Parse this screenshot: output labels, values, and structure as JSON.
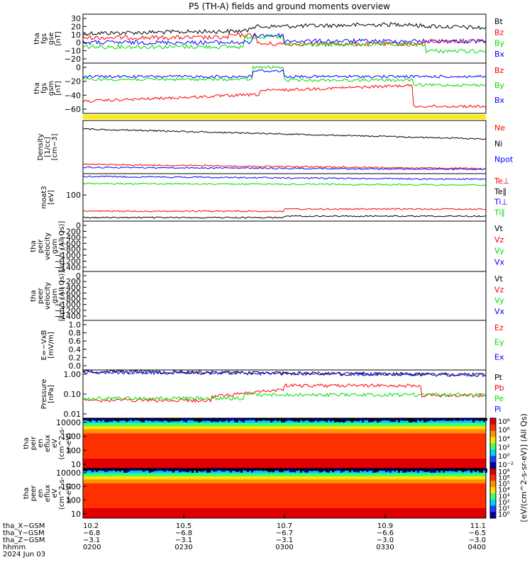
{
  "title": "P5 (TH-A) fields and ground moments overview",
  "chart_data": [
    {
      "type": "line",
      "ylabel": [
        "tha",
        "fgs",
        "gse",
        "[nT]"
      ],
      "yticks": [
        "30",
        "20",
        "10",
        "0",
        "−10",
        "−20"
      ],
      "ylim": [
        -28,
        36
      ],
      "series": [
        {
          "name": "Bt",
          "color": "#000000"
        },
        {
          "name": "Bz",
          "color": "#ff0000"
        },
        {
          "name": "By",
          "color": "#00dd00"
        },
        {
          "name": "Bx",
          "color": "#0000ff"
        }
      ]
    },
    {
      "type": "line",
      "ylabel": [
        "tha",
        "fgs",
        "gsm",
        "[nT]"
      ],
      "yticks": [
        "0",
        "−20",
        "−40",
        "−60"
      ],
      "ylim": [
        -70,
        5
      ],
      "series": [
        {
          "name": "Bz",
          "color": "#ff0000"
        },
        {
          "name": "By",
          "color": "#00dd00"
        },
        {
          "name": "Bx",
          "color": "#0000ff"
        }
      ]
    },
    {
      "type": "line",
      "ylabel": [
        "Density",
        "[1/cc]",
        "[cm−3]"
      ],
      "yticks": [],
      "series": [
        {
          "name": "Ne",
          "color": "#ff0000"
        },
        {
          "name": "Ni",
          "color": "#000000"
        },
        {
          "name": "Npot",
          "color": "#0000ff"
        }
      ]
    },
    {
      "type": "line",
      "ylabel": [
        "moat3",
        "[eV]"
      ],
      "yticks": [
        "100"
      ],
      "series": [
        {
          "name": "Te⊥",
          "color": "#ff0000"
        },
        {
          "name": "Te∥",
          "color": "#000000"
        },
        {
          "name": "Ti⊥",
          "color": "#0000ff"
        },
        {
          "name": "Ti∥",
          "color": "#00dd00"
        }
      ]
    },
    {
      "type": "line",
      "ylabel": [
        "tha",
        "peir",
        "velocity",
        "gsm",
        "[km/s (All Qs)]"
      ],
      "yticks": [
        "0",
        "−200",
        "−400",
        "−600",
        "−800",
        "−1000",
        "−1200",
        "−1400"
      ],
      "ylim": [
        -1450,
        20
      ],
      "series": [
        {
          "name": "Vt",
          "color": "#000000"
        },
        {
          "name": "Vz",
          "color": "#ff0000"
        },
        {
          "name": "Vy",
          "color": "#00dd00"
        },
        {
          "name": "Vx",
          "color": "#0000ff"
        }
      ]
    },
    {
      "type": "line",
      "ylabel": [
        "tha",
        "peer",
        "velocity",
        "gsm",
        "[km/s (All Qs)]"
      ],
      "yticks": [
        "0",
        "−200",
        "−400",
        "−600",
        "−800",
        "−1000",
        "−1200",
        "−1400"
      ],
      "ylim": [
        -1450,
        20
      ],
      "series": [
        {
          "name": "Vt",
          "color": "#000000"
        },
        {
          "name": "Vz",
          "color": "#ff0000"
        },
        {
          "name": "Vy",
          "color": "#00dd00"
        },
        {
          "name": "Vx",
          "color": "#0000ff"
        }
      ]
    },
    {
      "type": "line",
      "ylabel": [
        "E=−VxB",
        "[mV/m]"
      ],
      "yticks": [
        "1.0",
        "0.8",
        "0.6",
        "0.4",
        "0.2",
        "0.0"
      ],
      "ylim": [
        0,
        1.05
      ],
      "series": [
        {
          "name": "Ez",
          "color": "#ff0000"
        },
        {
          "name": "Ey",
          "color": "#00dd00"
        },
        {
          "name": "Ex",
          "color": "#0000ff"
        }
      ]
    },
    {
      "type": "line",
      "ylabel": [
        "Pressure",
        "[nPa]"
      ],
      "yticks": [
        "1.00",
        "0.10",
        "0.01"
      ],
      "yscale": "log",
      "series": [
        {
          "name": "Pt",
          "color": "#000000"
        },
        {
          "name": "Pb",
          "color": "#ff0000"
        },
        {
          "name": "Pe",
          "color": "#00dd00"
        },
        {
          "name": "Pi",
          "color": "#0000ff"
        }
      ]
    },
    {
      "type": "heatmap",
      "ylabel": [
        "tha",
        "peir",
        "en",
        "eflux",
        "eV",
        "(cm^2-s-",
        "sr-eV)"
      ],
      "yticks": [
        "10000",
        "1000",
        "100",
        "10"
      ],
      "yscale": "log",
      "colorbar_ticks": [
        "10⁸",
        "10⁶",
        "10⁴",
        "10²",
        "10⁰",
        "10⁻²"
      ]
    },
    {
      "type": "heatmap",
      "ylabel": [
        "tha",
        "peer",
        "en",
        "eflux",
        "eV",
        "(cm^2-s-",
        "sr-eV)"
      ],
      "yticks": [
        "10000",
        "1000",
        "100",
        "10"
      ],
      "yscale": "log",
      "colorbar_ticks": [
        "10⁸",
        "10⁶",
        "10⁵",
        "10⁴",
        "10³",
        "10²",
        "10¹",
        "10⁰"
      ]
    }
  ],
  "colorbar_label": "[eV/(cm^2-s-sr-eV)] (All Qs)",
  "x_axis": {
    "row_labels": [
      "tha_X−GSM",
      "tha_Y−GSM",
      "tha_Z−GSM",
      "hhmm",
      "2024 Jun 03"
    ],
    "columns": [
      [
        "10.2",
        "−6.8",
        "−3.1",
        "0200"
      ],
      [
        "10.5",
        "−6.8",
        "−3.1",
        "0230"
      ],
      [
        "10.7",
        "−6.7",
        "−3.1",
        "0300"
      ],
      [
        "10.9",
        "−6.6",
        "−3.0",
        "0330"
      ],
      [
        "11.1",
        "−6.5",
        "−3.0",
        "0400"
      ]
    ]
  }
}
